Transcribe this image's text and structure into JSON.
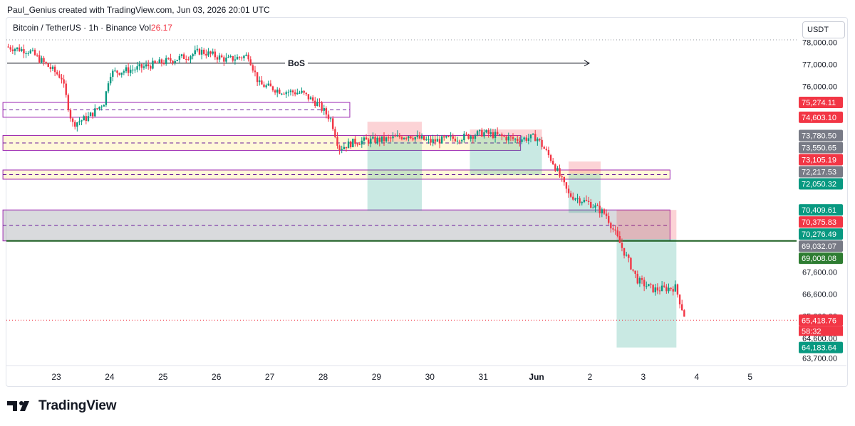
{
  "header": {
    "attribution": "Paul_Genius created with TradingView.com, Jun 03, 2026 20:01 UTC"
  },
  "legend": {
    "symbol": "Bitcoin / TetherUS · 1h · Binance",
    "vol_label": "Vol",
    "vol_value": "26.17"
  },
  "currency_button": "USDT",
  "brand": "TradingView",
  "chart_data": {
    "type": "candlestick",
    "x_tick_labels": [
      "23",
      "24",
      "25",
      "26",
      "27",
      "28",
      "29",
      "30",
      "31",
      "Jun",
      "2",
      "3",
      "4",
      "5"
    ],
    "y_tick_labels": [
      {
        "label": "78,000.00",
        "value": 78000
      },
      {
        "label": "77,000.00",
        "value": 77000
      },
      {
        "label": "76,000.00",
        "value": 76000
      },
      {
        "label": "67,600.00",
        "value": 67600
      },
      {
        "label": "66,600.00",
        "value": 66600
      },
      {
        "label": "65,600.00",
        "value": 65600
      },
      {
        "label": "64,600.00",
        "value": 64600
      },
      {
        "label": "63,700.00",
        "value": 63700
      }
    ],
    "ylim": [
      63400,
      78300
    ],
    "price_labels": [
      {
        "label": "75,274.11",
        "value": 75274.11,
        "color": "#f23645"
      },
      {
        "label": "74,603.10",
        "value": 74603.1,
        "color": "#f23645"
      },
      {
        "label": "73,780.50",
        "value": 73780.5,
        "color": "#787b86"
      },
      {
        "label": "73,550.65",
        "value": 73550.65,
        "color": "#787b86"
      },
      {
        "label": "73,105.19",
        "value": 73105.19,
        "color": "#f23645"
      },
      {
        "label": "72,217.53",
        "value": 72217.53,
        "color": "#787b86"
      },
      {
        "label": "72,050.32",
        "value": 72050.32,
        "color": "#089981"
      },
      {
        "label": "70,409.61",
        "value": 70409.61,
        "color": "#089981"
      },
      {
        "label": "70,375.83",
        "value": 70375.83,
        "color": "#f23645"
      },
      {
        "label": "70,276.49",
        "value": 70276.49,
        "color": "#089981"
      },
      {
        "label": "69,032.07",
        "value": 69032.07,
        "color": "#787b86"
      },
      {
        "label": "69,008.08",
        "value": 69008.08,
        "color": "#2e7d32"
      },
      {
        "label": "65,418.76",
        "value": 65418.76,
        "color": "#f23645"
      },
      {
        "label": "64,183.64",
        "value": 64183.64,
        "color": "#089981"
      }
    ],
    "countdown": "58:32",
    "annotations": {
      "bos_label": "BoS",
      "bos_price": 77050
    },
    "last_price": 65418.76,
    "zones": [
      {
        "kind": "supply",
        "top": 75274,
        "bottom": 74603,
        "from_day": 22.0,
        "to_day": 28.5
      },
      {
        "kind": "demand",
        "top": 73780,
        "bottom": 73105,
        "from_day": 22.0,
        "to_day": 31.7
      },
      {
        "kind": "demand",
        "top": 72217,
        "bottom": 71800,
        "from_day": 22.0,
        "to_day": 34.5
      },
      {
        "kind": "range",
        "top": 70409,
        "bottom": 69008,
        "from_day": 22.0,
        "to_day": 34.5
      }
    ],
    "positions": [
      {
        "from": 28.83,
        "to": 29.85,
        "entry": 73500,
        "stop": 74400,
        "target": 70376
      },
      {
        "from": 30.75,
        "to": 32.1,
        "entry": 73700,
        "stop": 74050,
        "target": 72000
      },
      {
        "from": 32.6,
        "to": 33.2,
        "entry": 72050,
        "stop": 72600,
        "target": 70280
      },
      {
        "from": 33.5,
        "to": 34.62,
        "entry": 69090,
        "stop": 70409,
        "target": 64184
      }
    ],
    "colors": {
      "up": "#089981",
      "down": "#f23645",
      "zone_border": "#9c27b0"
    }
  }
}
